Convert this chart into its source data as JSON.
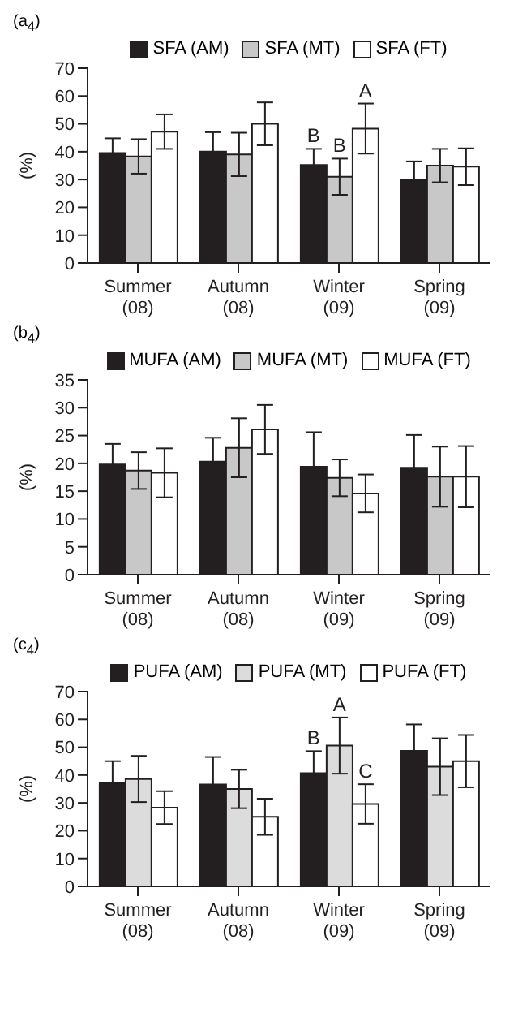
{
  "chart_data": [
    {
      "type": "bar",
      "title": "(a$_{4}$)",
      "ylabel": "(%)",
      "categories": [
        "Summer\n(08)",
        "Autumn\n(08)",
        "Winter\n(09)",
        "Spring\n(09)"
      ],
      "ylim": [
        0,
        70
      ],
      "yticks": [
        0,
        10,
        20,
        30,
        40,
        50,
        60,
        70
      ],
      "grid": false,
      "legend": "top",
      "series": [
        {
          "name": "SFA (AM)",
          "color": "#231f20",
          "values": [
            39.5,
            40,
            35.2,
            30
          ],
          "errors": [
            5.3,
            7,
            5.8,
            6.5
          ],
          "value_labels": [
            null,
            null,
            "B",
            null
          ]
        },
        {
          "name": "SFA (MT)",
          "color": "#c8c8c8",
          "values": [
            38.3,
            39,
            31,
            35
          ],
          "errors": [
            6.2,
            7.8,
            6.5,
            6
          ],
          "value_labels": [
            null,
            null,
            "B",
            null
          ]
        },
        {
          "name": "SFA (FT)",
          "color": "#ffffff",
          "values": [
            47.2,
            50,
            48.3,
            34.6
          ],
          "errors": [
            6.2,
            7.7,
            9,
            6.6
          ],
          "value_labels": [
            null,
            null,
            "A",
            null
          ]
        }
      ]
    },
    {
      "type": "bar",
      "title": "(b$_{4}$)",
      "ylabel": "(%)",
      "categories": [
        "Summer\n(08)",
        "Autumn\n(08)",
        "Winter\n(09)",
        "Spring\n(09)"
      ],
      "ylim": [
        0,
        35
      ],
      "yticks": [
        0,
        5,
        10,
        15,
        20,
        25,
        30,
        35
      ],
      "grid": false,
      "legend": "top",
      "series": [
        {
          "name": "MUFA (AM)",
          "color": "#231f20",
          "values": [
            19.8,
            20.3,
            19.4,
            19.2
          ],
          "errors": [
            3.7,
            4.3,
            6.2,
            5.9
          ]
        },
        {
          "name": "MUFA (MT)",
          "color": "#c8c8c8",
          "values": [
            18.7,
            22.8,
            17.4,
            17.6
          ],
          "errors": [
            3.3,
            5.3,
            3.3,
            5.4
          ]
        },
        {
          "name": "MUFA (FT)",
          "color": "#ffffff",
          "values": [
            18.3,
            26.1,
            14.6,
            17.6
          ],
          "errors": [
            4.4,
            4.4,
            3.4,
            5.5
          ]
        }
      ]
    },
    {
      "type": "bar",
      "title": "(c$_{4}$)",
      "ylabel": "(%)",
      "categories": [
        "Summer\n(08)",
        "Autumn\n(08)",
        "Winter\n(09)",
        "Spring\n(09)"
      ],
      "ylim": [
        0,
        70
      ],
      "yticks": [
        0,
        10,
        20,
        30,
        40,
        50,
        60,
        70
      ],
      "grid": false,
      "legend": "top",
      "series": [
        {
          "name": "PUFA (AM)",
          "color": "#231f20",
          "values": [
            37.2,
            36.6,
            40.7,
            48.7
          ],
          "errors": [
            7.8,
            9.9,
            7.9,
            9.5
          ],
          "value_labels": [
            null,
            null,
            "B",
            null
          ]
        },
        {
          "name": "PUFA (MT)",
          "color": "#dcdcdc",
          "values": [
            38.6,
            35,
            50.6,
            43
          ],
          "errors": [
            8.3,
            6.9,
            10.1,
            10.2
          ],
          "value_labels": [
            null,
            null,
            "A",
            null
          ]
        },
        {
          "name": "PUFA (FT)",
          "color": "#ffffff",
          "values": [
            28.3,
            25,
            29.6,
            45
          ],
          "errors": [
            5.9,
            6.5,
            7.1,
            9.4
          ],
          "value_labels": [
            null,
            null,
            "C",
            null
          ]
        }
      ]
    }
  ]
}
